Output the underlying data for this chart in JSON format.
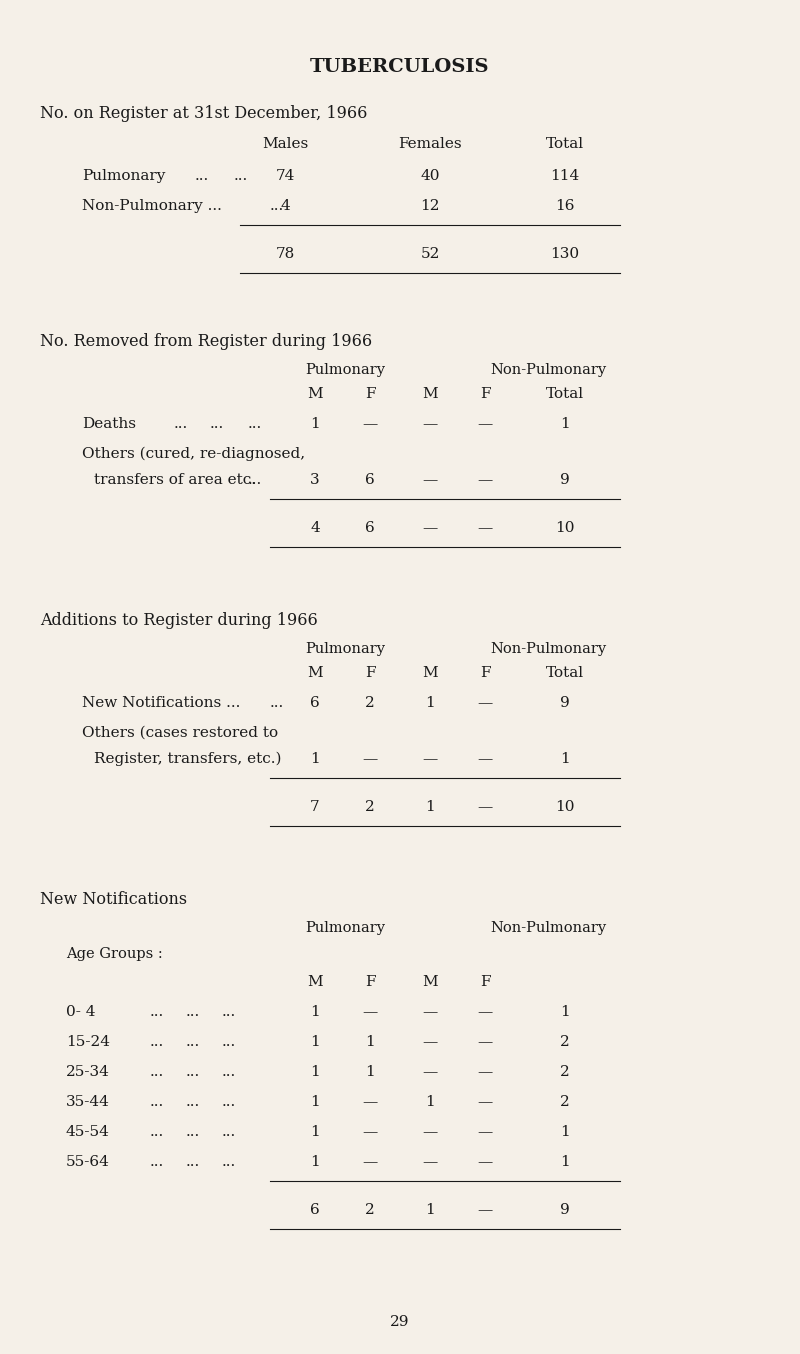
{
  "title": "TUBERCULOSIS",
  "bg_color": "#f5f0e8",
  "text_color": "#1a1a1a",
  "page_number": "29",
  "fig_w": 8.0,
  "fig_h": 13.54,
  "dpi": 100,
  "s1_heading": "No. on Register at 31st December, 1966",
  "s1_rows": [
    [
      "Pulmonary",
      "...",
      "...",
      "74",
      "40",
      "114"
    ],
    [
      "Non-Pulmonary ...",
      "...",
      "",
      "4",
      "12",
      "16"
    ]
  ],
  "s1_totals": [
    "78",
    "52",
    "130"
  ],
  "s2_heading": "No. Removed from Register during 1966",
  "s2_rows": [
    [
      "Deaths",
      "...",
      "...",
      "...",
      "1",
      "—",
      "—",
      "—",
      "1"
    ],
    [
      "Others (cured, re-diagnosed,",
      "transfers of area etc.",
      "...",
      "3",
      "6",
      "—",
      "—",
      "9"
    ]
  ],
  "s2_totals": [
    "4",
    "6",
    "—",
    "—",
    "10"
  ],
  "s3_heading": "Additions to Register during 1966",
  "s3_rows": [
    [
      "New Notifications ...",
      "...",
      "6",
      "2",
      "1",
      "—",
      "9"
    ],
    [
      "Others (cases restored to",
      "Register, transfers, etc.)",
      "1",
      "—",
      "—",
      "—",
      "1"
    ]
  ],
  "s3_totals": [
    "7",
    "2",
    "1",
    "—",
    "10"
  ],
  "s4_heading": "New Notifications",
  "s4_age_label": "Age Groups :",
  "s4_ages": [
    "0- 4",
    "15-24",
    "25-34",
    "35-44",
    "45-54",
    "55-64"
  ],
  "s4_rows": [
    [
      "1",
      "—",
      "—",
      "—",
      "1"
    ],
    [
      "1",
      "1",
      "—",
      "—",
      "2"
    ],
    [
      "1",
      "1",
      "—",
      "—",
      "2"
    ],
    [
      "1",
      "—",
      "1",
      "—",
      "2"
    ],
    [
      "1",
      "—",
      "—",
      "—",
      "1"
    ],
    [
      "1",
      "—",
      "—",
      "—",
      "1"
    ]
  ],
  "s4_totals": [
    "6",
    "2",
    "1",
    "—",
    "9"
  ]
}
